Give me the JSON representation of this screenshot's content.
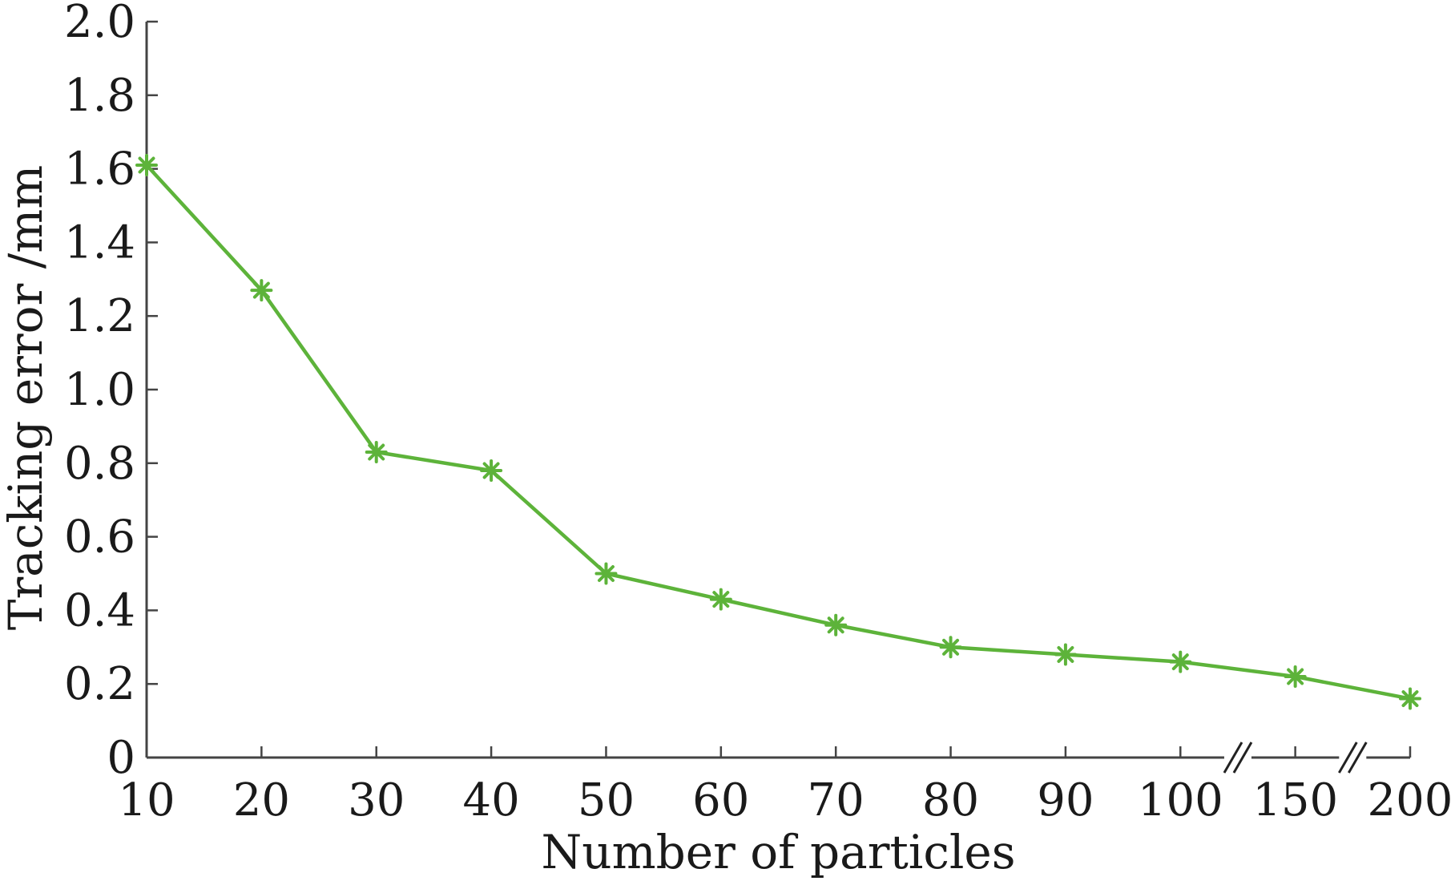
{
  "chart_data": {
    "type": "line",
    "title": "",
    "xlabel": "Number of particles",
    "ylabel": "Tracking error /mm",
    "categories": [
      "10",
      "20",
      "30",
      "40",
      "50",
      "60",
      "70",
      "80",
      "90",
      "100",
      "150",
      "200"
    ],
    "series": [
      {
        "name": "Tracking error",
        "marker": "asterisk",
        "color": "#5db33a",
        "values": [
          1.61,
          1.27,
          0.83,
          0.78,
          0.5,
          0.43,
          0.36,
          0.3,
          0.28,
          0.26,
          0.22,
          0.16
        ]
      }
    ],
    "ylim": [
      0,
      2.0
    ],
    "yticks": [
      "0",
      "0.2",
      "0.4",
      "0.6",
      "0.8",
      "1.0",
      "1.2",
      "1.4",
      "1.6",
      "1.8",
      "2.0"
    ],
    "ytick_values": [
      0,
      0.2,
      0.4,
      0.6,
      0.8,
      1.0,
      1.2,
      1.4,
      1.6,
      1.8,
      2.0
    ],
    "axis_breaks_after": [
      "100",
      "150"
    ],
    "grid": false,
    "legend": "none"
  }
}
